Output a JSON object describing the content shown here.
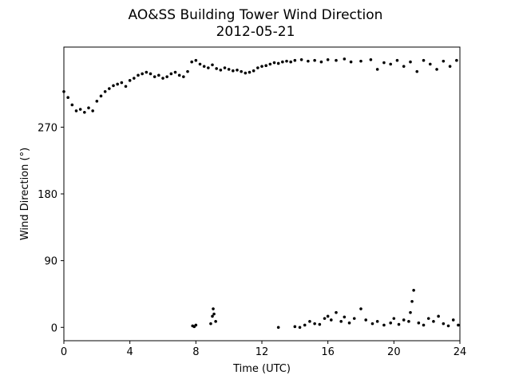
{
  "chart_data": {
    "type": "scatter",
    "title": "AO&SS Building Tower Wind Direction",
    "subtitle": "2012-05-21",
    "xlabel": "Time (UTC)",
    "ylabel": "Wind Direction (°)",
    "xlim": [
      0,
      24
    ],
    "ylim": [
      -18,
      378
    ],
    "xticks": [
      0,
      4,
      8,
      12,
      16,
      20,
      24
    ],
    "yticks": [
      0,
      90,
      180,
      270
    ],
    "grid": false,
    "color": "#000000",
    "x": [
      0,
      0.25,
      0.5,
      0.75,
      1,
      1.25,
      1.5,
      1.75,
      2,
      2.25,
      2.5,
      2.75,
      3,
      3.25,
      3.5,
      3.75,
      4,
      4.25,
      4.5,
      4.75,
      5,
      5.25,
      5.5,
      5.75,
      6,
      6.25,
      6.5,
      6.75,
      7,
      7.25,
      7.5,
      7.75,
      8,
      8.25,
      8.5,
      8.75,
      9,
      9.25,
      9.5,
      9.75,
      10,
      10.25,
      10.5,
      10.75,
      11,
      11.25,
      11.5,
      11.75,
      12,
      12.25,
      12.5,
      12.75,
      13,
      13.25,
      13.5,
      13.75,
      14,
      14.4,
      14.8,
      15.2,
      15.6,
      16,
      16.5,
      17,
      17.4,
      18,
      18.6,
      19,
      19.4,
      19.8,
      20.2,
      20.6,
      21,
      21.4,
      21.8,
      22.2,
      22.6,
      23,
      23.4,
      23.8,
      7.8,
      7.9,
      8.0,
      8.9,
      9.0,
      9.05,
      9.1,
      9.2,
      13,
      14,
      14.3,
      14.6,
      14.9,
      15.2,
      15.5,
      15.8,
      16,
      16.2,
      16.5,
      16.8,
      17,
      17.3,
      17.6,
      18,
      18.3,
      18.7,
      19,
      19.4,
      19.8,
      20,
      20.3,
      20.6,
      20.9,
      21,
      21.1,
      21.2,
      21.5,
      21.8,
      22.1,
      22.4,
      22.7,
      23,
      23.3,
      23.6,
      23.9
    ],
    "values": [
      318,
      310,
      300,
      292,
      294,
      290,
      296,
      292,
      305,
      312,
      318,
      322,
      326,
      328,
      330,
      325,
      333,
      336,
      340,
      342,
      344,
      342,
      338,
      340,
      336,
      338,
      342,
      344,
      340,
      338,
      345,
      358,
      360,
      355,
      352,
      350,
      354,
      349,
      347,
      350,
      348,
      346,
      347,
      345,
      343,
      344,
      346,
      350,
      352,
      353,
      355,
      357,
      356,
      358,
      359,
      358,
      360,
      361,
      359,
      360,
      358,
      361,
      360,
      362,
      358,
      359,
      361,
      348,
      357,
      355,
      360,
      352,
      358,
      345,
      360,
      355,
      348,
      359,
      352,
      360,
      2,
      1,
      3,
      5,
      15,
      25,
      18,
      8,
      0,
      1,
      0,
      3,
      8,
      5,
      4,
      12,
      15,
      10,
      20,
      8,
      14,
      6,
      12,
      25,
      10,
      5,
      8,
      3,
      6,
      12,
      4,
      10,
      8,
      20,
      35,
      50,
      6,
      3,
      12,
      8,
      15,
      5,
      2,
      10,
      3
    ]
  }
}
